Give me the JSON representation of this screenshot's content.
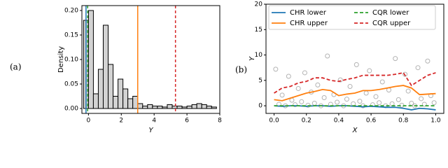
{
  "chart_data": [
    {
      "type": "histogram",
      "panel_label": "(a)",
      "ylabel": "Density",
      "xlabel": "Y",
      "bins": [
        -0.3,
        0,
        0.3,
        0.6,
        0.9,
        1.2,
        1.5,
        1.8,
        2.1,
        2.4,
        2.7,
        3.0,
        3.3,
        3.6,
        3.9,
        4.2,
        4.5,
        4.8,
        5.1,
        5.4,
        5.7,
        6.0,
        6.3,
        6.6,
        6.9,
        7.2,
        7.5,
        7.8
      ],
      "values": [
        0.18,
        0.2,
        0.03,
        0.08,
        0.17,
        0.09,
        0.025,
        0.06,
        0.04,
        0.02,
        0.025,
        0.01,
        0.005,
        0.008,
        0.005,
        0.005,
        0.003,
        0.008,
        0.005,
        0.005,
        0.003,
        0.005,
        0.008,
        0.01,
        0.008,
        0.005,
        0.003
      ],
      "color": "#d3d3d3",
      "vlines": [
        {
          "x": -0.15,
          "color": "#1f77b4",
          "style": "solid"
        },
        {
          "x": -0.05,
          "color": "#2ca02c",
          "style": "dashed"
        },
        {
          "x": 3.0,
          "color": "#ff7f0e",
          "style": "solid"
        },
        {
          "x": 5.3,
          "color": "#d62728",
          "style": "dashed"
        }
      ],
      "xlim": [
        -0.4,
        8
      ],
      "xticks": [
        0,
        2,
        4,
        6,
        8
      ],
      "ylim": [
        -0.01,
        0.21
      ],
      "yticks": [
        {
          "value": 0,
          "label": "0.00"
        },
        {
          "value": 0.05,
          "label": "0.05"
        },
        {
          "value": 0.1,
          "label": "0.10"
        },
        {
          "value": 0.15,
          "label": "0.15"
        },
        {
          "value": 0.2,
          "label": "0.20"
        }
      ]
    },
    {
      "type": "line",
      "panel_label": "(b)",
      "ylabel": "Y",
      "xlabel": "X",
      "legend": "upper center",
      "x": [
        0,
        0.05,
        0.1,
        0.15,
        0.2,
        0.25,
        0.3,
        0.35,
        0.4,
        0.45,
        0.5,
        0.55,
        0.6,
        0.65,
        0.7,
        0.75,
        0.8,
        0.85,
        0.9,
        0.95,
        1.0
      ],
      "series": [
        {
          "name": "CHR lower",
          "color": "#1f77b4",
          "style": "solid",
          "values": [
            0,
            -0.1,
            0,
            0,
            -0.1,
            0,
            0,
            -0.1,
            0,
            0,
            -0.1,
            -0.2,
            -0.1,
            -0.2,
            -0.3,
            -0.3,
            -0.5,
            -0.8,
            -0.5,
            -0.6,
            -0.8
          ]
        },
        {
          "name": "CQR lower",
          "color": "#2ca02c",
          "style": "dashed",
          "values": [
            0,
            0,
            0,
            0,
            0,
            0,
            0,
            0,
            0,
            0,
            0,
            0,
            0,
            0,
            0,
            0,
            0,
            0,
            0,
            0,
            0
          ]
        },
        {
          "name": "CHR upper",
          "color": "#ff7f0e",
          "style": "solid",
          "values": [
            1.2,
            1.0,
            1.5,
            2.0,
            2.5,
            2.8,
            3.2,
            3.0,
            2.0,
            2.3,
            2.5,
            3.0,
            3.0,
            3.2,
            3.5,
            3.8,
            4.0,
            3.5,
            2.2,
            2.3,
            2.4
          ]
        },
        {
          "name": "CQR upper",
          "color": "#d62728",
          "style": "dashed",
          "values": [
            2.5,
            3.5,
            3.8,
            4.5,
            4.8,
            5.5,
            5.5,
            5.0,
            4.8,
            5.2,
            5.5,
            6.0,
            6.0,
            6.0,
            6.0,
            6.2,
            6.5,
            4.0,
            5.0,
            6.0,
            6.5
          ]
        }
      ],
      "points": {
        "color": "#808080",
        "x": [
          0.01,
          0.03,
          0.05,
          0.07,
          0.09,
          0.11,
          0.13,
          0.15,
          0.17,
          0.19,
          0.21,
          0.23,
          0.25,
          0.27,
          0.29,
          0.31,
          0.33,
          0.35,
          0.37,
          0.39,
          0.41,
          0.43,
          0.45,
          0.47,
          0.49,
          0.51,
          0.53,
          0.55,
          0.57,
          0.59,
          0.61,
          0.63,
          0.65,
          0.67,
          0.69,
          0.71,
          0.73,
          0.75,
          0.77,
          0.79,
          0.81,
          0.83,
          0.85,
          0.87,
          0.89,
          0.91,
          0.93,
          0.95,
          0.97,
          0.99
        ],
        "y": [
          7.2,
          0.3,
          2.1,
          0.0,
          5.8,
          1.1,
          0.2,
          3.4,
          0.8,
          6.5,
          0.1,
          2.7,
          0.5,
          4.1,
          0.0,
          1.6,
          9.8,
          0.3,
          2.2,
          0.7,
          5.1,
          0.0,
          1.3,
          3.8,
          0.4,
          8.1,
          0.9,
          0.0,
          2.5,
          6.9,
          0.2,
          1.8,
          0.6,
          4.7,
          0.0,
          3.1,
          0.4,
          9.3,
          1.2,
          0.1,
          6.2,
          2.9,
          0.5,
          0.0,
          7.5,
          1.4,
          0.3,
          8.8,
          2.0,
          0.6
        ]
      },
      "xlim": [
        -0.05,
        1.05
      ],
      "xticks": [
        {
          "value": 0,
          "label": "0.0"
        },
        {
          "value": 0.2,
          "label": "0.2"
        },
        {
          "value": 0.4,
          "label": "0.4"
        },
        {
          "value": 0.6,
          "label": "0.6"
        },
        {
          "value": 0.8,
          "label": "0.8"
        },
        {
          "value": 1,
          "label": "1.0"
        }
      ],
      "ylim": [
        -1.5,
        20
      ],
      "yticks": [
        0,
        5,
        10,
        15,
        20
      ]
    }
  ]
}
